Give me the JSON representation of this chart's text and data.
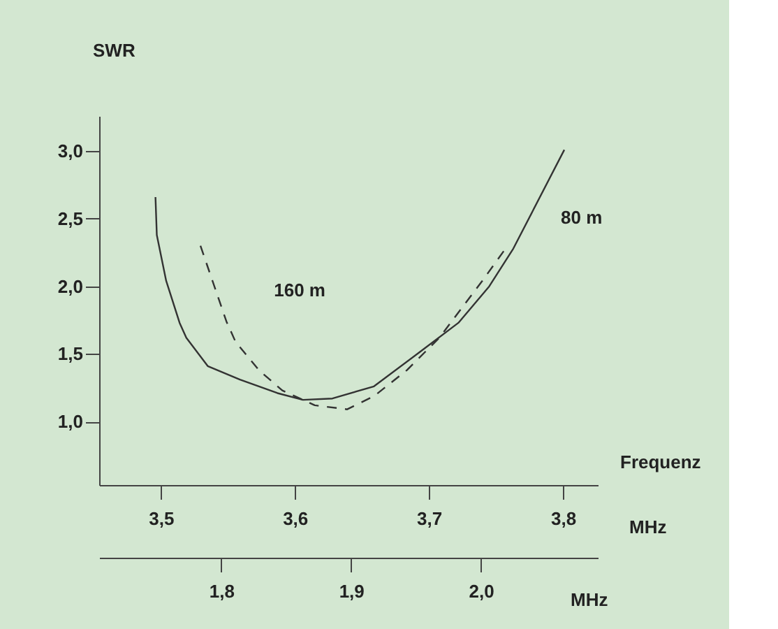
{
  "chart_data": {
    "type": "line",
    "ylabel": "SWR",
    "xlabel": "MHz",
    "x2label": "MHz",
    "annotations": [
      "Frequenz"
    ],
    "xlim": [
      3.454,
      3.826
    ],
    "xticks": [
      {
        "value": 3.5,
        "label": "3,5"
      },
      {
        "value": 3.6,
        "label": "3,6"
      },
      {
        "value": 3.7,
        "label": "3,7"
      },
      {
        "value": 3.8,
        "label": "3,8"
      }
    ],
    "x2lim": [
      1.706,
      2.09
    ],
    "x2ticks": [
      {
        "value": 1.8,
        "label": "1,8"
      },
      {
        "value": 1.9,
        "label": "1,9"
      },
      {
        "value": 2.0,
        "label": "2,0"
      }
    ],
    "ylim": [
      0.53,
      3.26
    ],
    "yticks": [
      {
        "value": 1.0,
        "label": "1,0"
      },
      {
        "value": 1.5,
        "label": "1,5"
      },
      {
        "value": 2.0,
        "label": "2,0"
      },
      {
        "value": 2.5,
        "label": "2,5"
      },
      {
        "value": 3.0,
        "label": "3,0"
      }
    ],
    "marker": "none",
    "series": [
      {
        "name": "80 m",
        "color": "#333333",
        "line_style": "solid",
        "x": [
          3.496,
          3.497,
          3.504,
          3.514,
          3.519,
          3.535,
          3.559,
          3.587,
          3.606,
          3.628,
          3.659,
          3.694,
          3.722,
          3.745,
          3.763,
          3.801
        ],
        "values": [
          2.66,
          2.38,
          2.04,
          1.73,
          1.62,
          1.41,
          1.31,
          1.21,
          1.16,
          1.17,
          1.26,
          1.52,
          1.73,
          2.0,
          2.28,
          3.01
        ]
      },
      {
        "name": "160 m",
        "color": "#333333",
        "line_style": "dashed",
        "axis": "x2",
        "x": [
          1.784,
          1.804,
          1.811,
          1.829,
          1.847,
          1.872,
          1.897,
          1.918,
          1.943,
          1.968,
          2.001,
          2.019
        ],
        "values": [
          2.3,
          1.74,
          1.59,
          1.38,
          1.23,
          1.12,
          1.09,
          1.19,
          1.38,
          1.62,
          2.04,
          2.28
        ]
      }
    ]
  }
}
